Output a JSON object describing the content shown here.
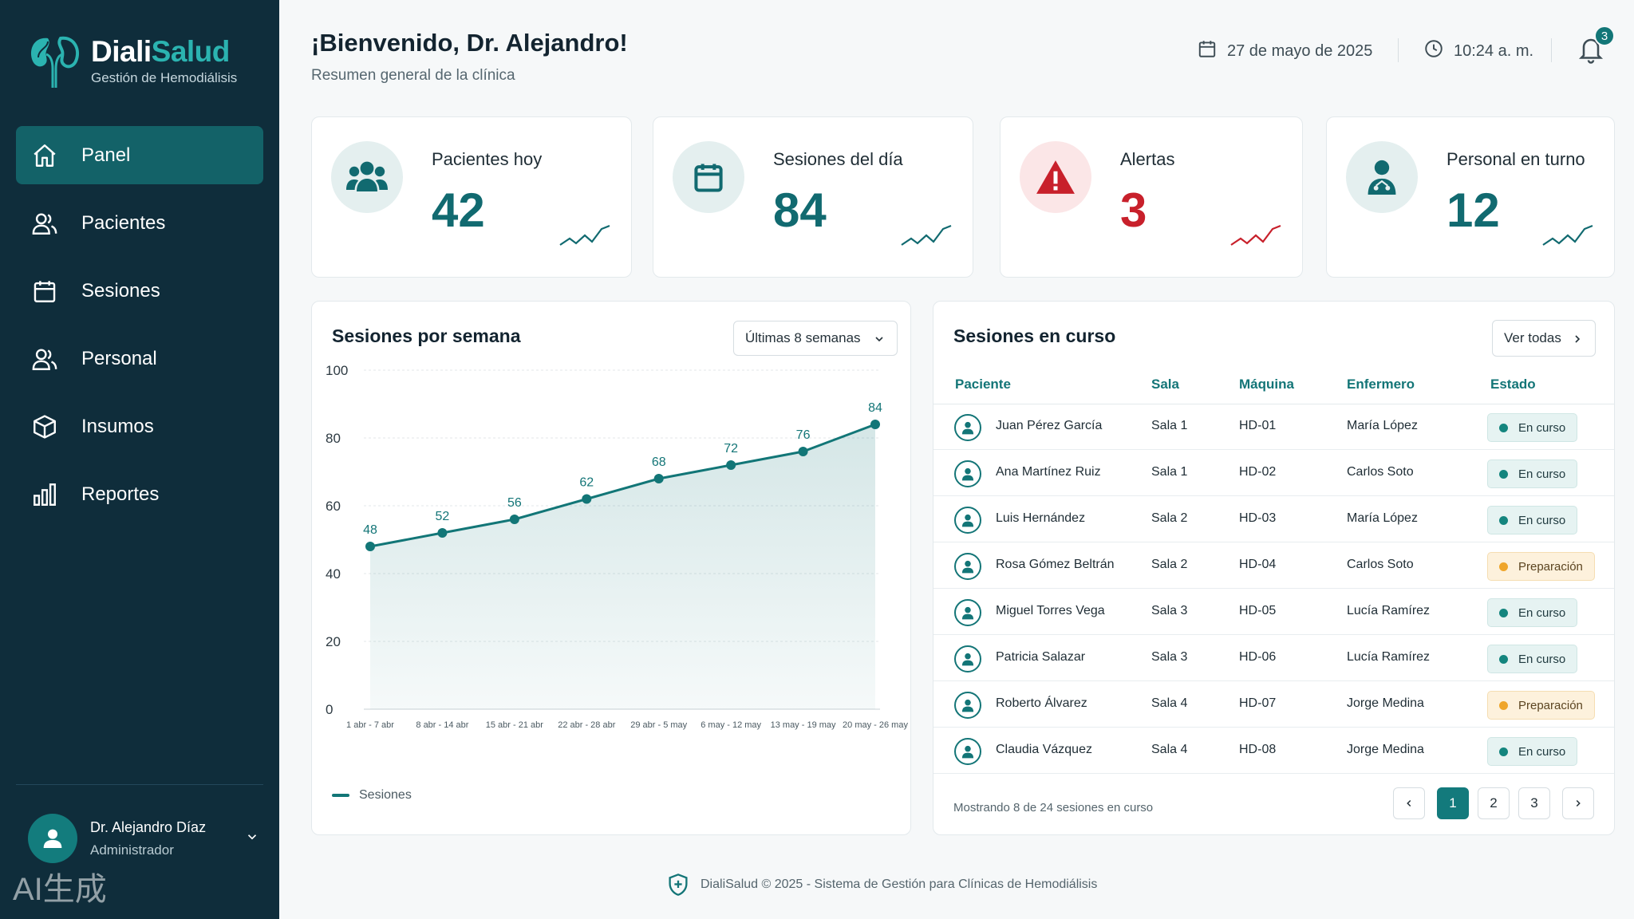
{
  "brand": {
    "name_part1": "Diali",
    "name_part2": "Salud",
    "subtitle": "Gestión de Hemodiálisis"
  },
  "nav": [
    {
      "label": "Panel",
      "icon": "home-icon",
      "active": true
    },
    {
      "label": "Pacientes",
      "icon": "users-icon"
    },
    {
      "label": "Sesiones",
      "icon": "calendar-icon"
    },
    {
      "label": "Personal",
      "icon": "staff-icon"
    },
    {
      "label": "Insumos",
      "icon": "box-icon"
    },
    {
      "label": "Reportes",
      "icon": "bar-chart-icon"
    }
  ],
  "user": {
    "name": "Dr. Alejandro Díaz",
    "role": "Administrador"
  },
  "watermark": "AI生成",
  "header": {
    "title": "¡Bienvenido, Dr. Alejandro!",
    "subtitle": "Resumen general de la clínica",
    "date": "27 de mayo de 2025",
    "time": "10:24 a. m.",
    "notifications": "3"
  },
  "stats": [
    {
      "label": "Pacientes hoy",
      "value": "42",
      "icon": "users-icon",
      "accent": "#116a70"
    },
    {
      "label": "Sesiones del día",
      "value": "84",
      "icon": "calendar-icon",
      "accent": "#116a70"
    },
    {
      "label": "Alertas",
      "value": "3",
      "icon": "alert-icon",
      "accent": "#c8202b"
    },
    {
      "label": "Personal en turno",
      "value": "12",
      "icon": "doctor-icon",
      "accent": "#116a70"
    }
  ],
  "chart_panel": {
    "title": "Sesiones por semana",
    "range_select": "Últimas 8 semanas",
    "legend": "Sesiones"
  },
  "chart_data": {
    "type": "area",
    "categories": [
      "1 abr - 7 abr",
      "8 abr - 14 abr",
      "15 abr - 21 abr",
      "22 abr - 28 abr",
      "29 abr - 5 may",
      "6 may - 12 may",
      "13 may - 19 may",
      "20 may - 26 may"
    ],
    "series": [
      {
        "name": "Sesiones",
        "values": [
          48,
          52,
          56,
          62,
          68,
          72,
          76,
          84
        ]
      }
    ],
    "yticks": [
      0,
      20,
      40,
      60,
      80,
      100
    ],
    "ylim": [
      0,
      100
    ],
    "grid": true,
    "legend": "bottom-left",
    "color": "#127677"
  },
  "table": {
    "title": "Sesiones en curso",
    "view_all": "Ver todas",
    "columns": [
      "Paciente",
      "Sala",
      "Máquina",
      "Enfermero",
      "Estado"
    ],
    "rows": [
      {
        "patient": "Juan Pérez García",
        "room": "Sala 1",
        "machine": "HD-01",
        "nurse": "María López",
        "status": "En curso",
        "kind": "run"
      },
      {
        "patient": "Ana Martínez Ruiz",
        "room": "Sala 1",
        "machine": "HD-02",
        "nurse": "Carlos Soto",
        "status": "En curso",
        "kind": "run"
      },
      {
        "patient": "Luis Hernández",
        "room": "Sala 2",
        "machine": "HD-03",
        "nurse": "María López",
        "status": "En curso",
        "kind": "run"
      },
      {
        "patient": "Rosa Gómez Beltrán",
        "room": "Sala 2",
        "machine": "HD-04",
        "nurse": "Carlos Soto",
        "status": "Preparación",
        "kind": "prep"
      },
      {
        "patient": "Miguel Torres Vega",
        "room": "Sala 3",
        "machine": "HD-05",
        "nurse": "Lucía Ramírez",
        "status": "En curso",
        "kind": "run"
      },
      {
        "patient": "Patricia Salazar",
        "room": "Sala 3",
        "machine": "HD-06",
        "nurse": "Lucía Ramírez",
        "status": "En curso",
        "kind": "run"
      },
      {
        "patient": "Roberto Álvarez",
        "room": "Sala 4",
        "machine": "HD-07",
        "nurse": "Jorge Medina",
        "status": "Preparación",
        "kind": "prep"
      },
      {
        "patient": "Claudia Vázquez",
        "room": "Sala 4",
        "machine": "HD-08",
        "nurse": "Jorge Medina",
        "status": "En curso",
        "kind": "run"
      }
    ],
    "footer": "Mostrando 8 de 24 sesiones en curso",
    "pages": [
      "1",
      "2",
      "3"
    ],
    "current_page": "1"
  },
  "footer": {
    "text": "DialiSalud © 2025 - Sistema de Gestión para Clínicas de Hemodiálisis"
  }
}
